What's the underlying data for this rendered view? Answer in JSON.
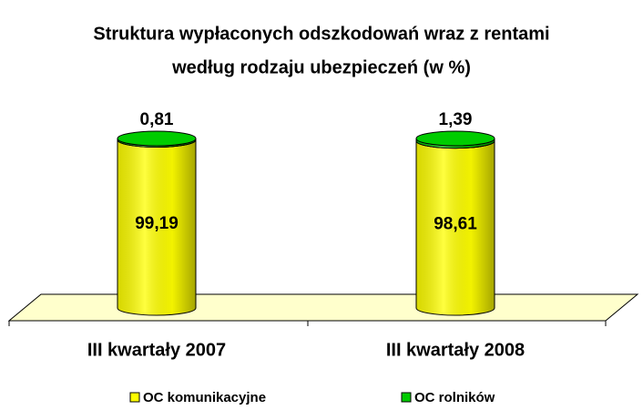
{
  "chart_data": {
    "type": "bar3d_stacked",
    "title": [
      "Struktura wypłaconych odszkodowań wraz z rentami",
      "według rodzaju ubezpieczeń (w %)"
    ],
    "categories": [
      "III kwartały 2007",
      "III kwartały 2008"
    ],
    "ylim": [
      0,
      100
    ],
    "series": [
      {
        "name": "OC komunikacyjne",
        "color": "#ffff00",
        "label_color": "#000000",
        "values": [
          99.19,
          98.61
        ],
        "value_labels": [
          "99,19",
          "98,61"
        ]
      },
      {
        "name": "OC rolników",
        "color": "#00cc00",
        "label_color": "#1e8c1e",
        "values": [
          0.81,
          1.39
        ],
        "value_labels": [
          "0,81",
          "1,39"
        ]
      }
    ]
  }
}
